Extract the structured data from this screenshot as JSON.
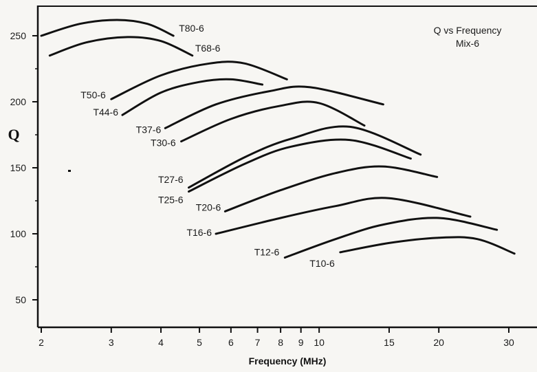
{
  "chart_data": {
    "type": "line",
    "title": "Q vs Frequency",
    "subtitle": "Mix-6",
    "xlabel": "Frequency (MHz)",
    "ylabel": "Q",
    "x_scale": "log",
    "xlim": [
      2,
      33
    ],
    "ylim": [
      30,
      265
    ],
    "x_ticks": [
      2,
      3,
      4,
      5,
      6,
      7,
      8,
      9,
      10,
      15,
      20,
      30
    ],
    "y_ticks": [
      50,
      100,
      150,
      200,
      250
    ],
    "grid": false,
    "series": [
      {
        "name": "T80-6",
        "points": [
          [
            2,
            250
          ],
          [
            2.5,
            259
          ],
          [
            3.1,
            262
          ],
          [
            3.7,
            259
          ],
          [
            4.3,
            250
          ]
        ]
      },
      {
        "name": "T68-6",
        "points": [
          [
            2.1,
            235
          ],
          [
            2.6,
            245
          ],
          [
            3.3,
            249
          ],
          [
            4.0,
            246
          ],
          [
            4.8,
            235
          ]
        ]
      },
      {
        "name": "T50-6",
        "points": [
          [
            3.0,
            202
          ],
          [
            4.0,
            220
          ],
          [
            5.3,
            229
          ],
          [
            6.5,
            229
          ],
          [
            8.3,
            217
          ]
        ]
      },
      {
        "name": "T44-6",
        "points": [
          [
            3.2,
            190
          ],
          [
            4.0,
            207
          ],
          [
            5.0,
            215
          ],
          [
            6.0,
            217
          ],
          [
            7.2,
            213
          ]
        ]
      },
      {
        "name": "T37-6",
        "points": [
          [
            4.1,
            180
          ],
          [
            5.5,
            198
          ],
          [
            7.5,
            208
          ],
          [
            9.5,
            211
          ],
          [
            14.5,
            198
          ]
        ]
      },
      {
        "name": "T30-6",
        "points": [
          [
            4.5,
            170
          ],
          [
            6.0,
            187
          ],
          [
            8.0,
            197
          ],
          [
            10.0,
            199
          ],
          [
            13.0,
            182
          ]
        ]
      },
      {
        "name": "T27-6",
        "points": [
          [
            4.7,
            135
          ],
          [
            6.5,
            158
          ],
          [
            8.5,
            172
          ],
          [
            12.0,
            181
          ],
          [
            18.0,
            160
          ]
        ]
      },
      {
        "name": "T25-6",
        "points": [
          [
            4.7,
            132
          ],
          [
            6.5,
            153
          ],
          [
            8.5,
            166
          ],
          [
            12.0,
            171
          ],
          [
            17.0,
            157
          ]
        ]
      },
      {
        "name": "T20-6",
        "points": [
          [
            5.8,
            117
          ],
          [
            8.0,
            133
          ],
          [
            11.0,
            146
          ],
          [
            14.5,
            151
          ],
          [
            19.8,
            143
          ]
        ]
      },
      {
        "name": "T16-6",
        "points": [
          [
            5.5,
            100
          ],
          [
            8.0,
            112
          ],
          [
            11.0,
            121
          ],
          [
            15.0,
            127
          ],
          [
            24.0,
            113
          ]
        ]
      },
      {
        "name": "T12-6",
        "points": [
          [
            8.2,
            82
          ],
          [
            11.0,
            96
          ],
          [
            14.5,
            107
          ],
          [
            20.0,
            112
          ],
          [
            28.0,
            103
          ]
        ]
      },
      {
        "name": "T10-6",
        "points": [
          [
            11.3,
            86
          ],
          [
            15.0,
            93
          ],
          [
            20.0,
            97
          ],
          [
            25.0,
            96
          ],
          [
            31.0,
            85
          ]
        ]
      }
    ]
  }
}
